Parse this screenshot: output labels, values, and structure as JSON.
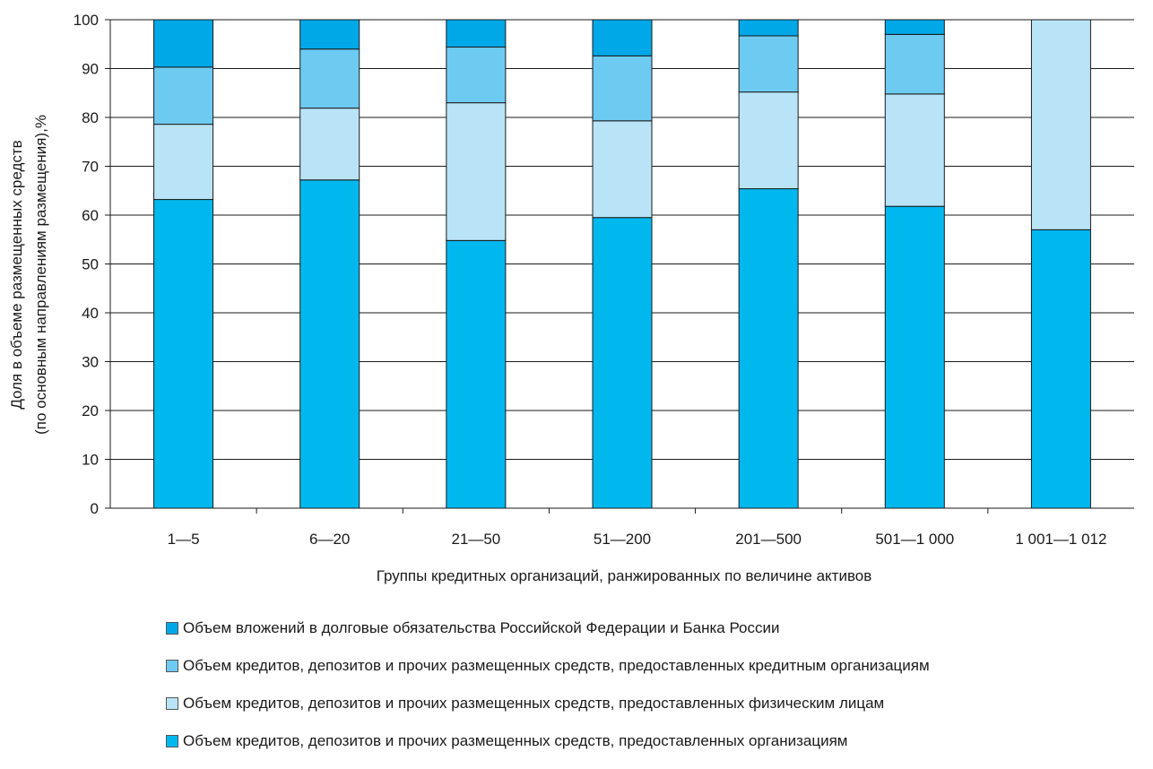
{
  "chart_data": {
    "type": "bar",
    "stacked": true,
    "categories": [
      "1—5",
      "6—20",
      "21—50",
      "51—200",
      "201—500",
      "501—1 000",
      "1 001—1 012"
    ],
    "series": [
      {
        "name": "Объем кредитов, депозитов и прочих размещенных средств, предоставленных организациям",
        "color": "#00b8ee",
        "values": [
          63.2,
          67.2,
          54.8,
          59.5,
          65.4,
          61.8,
          57.0
        ]
      },
      {
        "name": "Объем кредитов, депозитов и прочих размещенных средств, предоставленных физическим лицам",
        "color": "#b9e4f7",
        "values": [
          15.4,
          14.7,
          28.2,
          19.8,
          19.8,
          23.0,
          43.0
        ]
      },
      {
        "name": "Объем кредитов, депозитов и прочих размещенных средств, предоставленных кредитным организациям",
        "color": "#6dcbf2",
        "values": [
          11.7,
          12.1,
          11.4,
          13.3,
          11.5,
          12.2,
          0
        ]
      },
      {
        "name": "Объем вложений в  долговые обязательства Российской Федерации и Банка России",
        "color": "#00a8e8",
        "values": [
          9.7,
          6.0,
          5.6,
          7.4,
          3.3,
          3.0,
          0
        ]
      }
    ],
    "ylim": [
      0,
      100
    ],
    "yticks": [
      "0",
      "10",
      "20",
      "30",
      "40",
      "50",
      "60",
      "70",
      "80",
      "90",
      "100"
    ],
    "xlabel": "Группы кредитных организаций, ранжированных по величине активов",
    "ylabel_lines": [
      "Доля в объеме размещенных средств",
      "(по основным направлениям размещения),%"
    ],
    "grid": true,
    "legend_position": "bottom",
    "legend_order": [
      3,
      2,
      1,
      0
    ]
  }
}
